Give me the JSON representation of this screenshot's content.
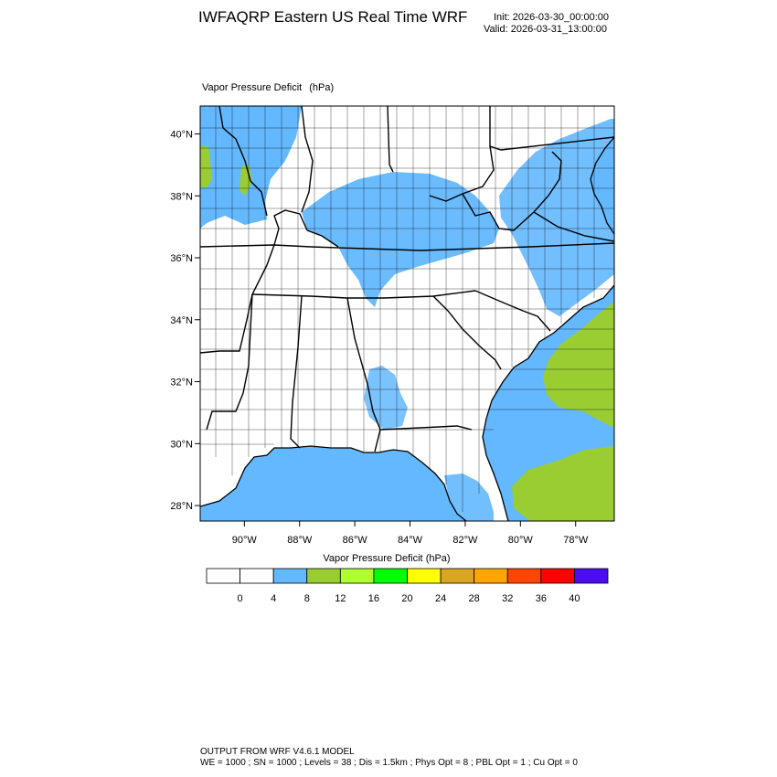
{
  "header": {
    "title": "IWFAQRP Eastern US Real Time WRF",
    "init": "Init: 2026-03-30_00:00:00",
    "valid": "Valid: 2026-03-31_13:00:00"
  },
  "field": {
    "name": "Vapor Pressure Deficit",
    "units": "(hPa)"
  },
  "map": {
    "lon_range": [
      -91.6,
      -76.6
    ],
    "lat_range": [
      27.5,
      40.9
    ],
    "lon_ticks": [
      "90°W",
      "88°W",
      "86°W",
      "84°W",
      "82°W",
      "80°W",
      "78°W"
    ],
    "lon_tick_values": [
      -90,
      -88,
      -86,
      -84,
      -82,
      -80,
      -78
    ],
    "lat_ticks": [
      "40°N",
      "38°N",
      "36°N",
      "34°N",
      "32°N",
      "30°N",
      "28°N"
    ],
    "lat_tick_values": [
      40,
      38,
      36,
      34,
      32,
      30,
      28
    ],
    "colors": {
      "land": "#ffffff",
      "water_low": "#63b8ff",
      "water_mid": "#9acd32",
      "border": "#000000"
    }
  },
  "colorbar": {
    "title": "Vapor Pressure Deficit",
    "units": "(hPa)",
    "labels": [
      "0",
      "4",
      "8",
      "12",
      "16",
      "20",
      "24",
      "28",
      "32",
      "36",
      "40"
    ],
    "colors": [
      "#ffffff",
      "#ffffff",
      "#63b8ff",
      "#9acd32",
      "#adff2f",
      "#00ff00",
      "#ffff00",
      "#daa520",
      "#ffa500",
      "#ff4500",
      "#ff0000",
      "#4b0df0"
    ]
  },
  "footer": {
    "line1": "OUTPUT FROM WRF V4.6.1 MODEL",
    "line2": "WE = 1000 ; SN = 1000 ; Levels = 38 ; Dis = 1.5km ; Phys Opt = 8 ; PBL Opt = 1 ; Cu Opt = 0"
  }
}
